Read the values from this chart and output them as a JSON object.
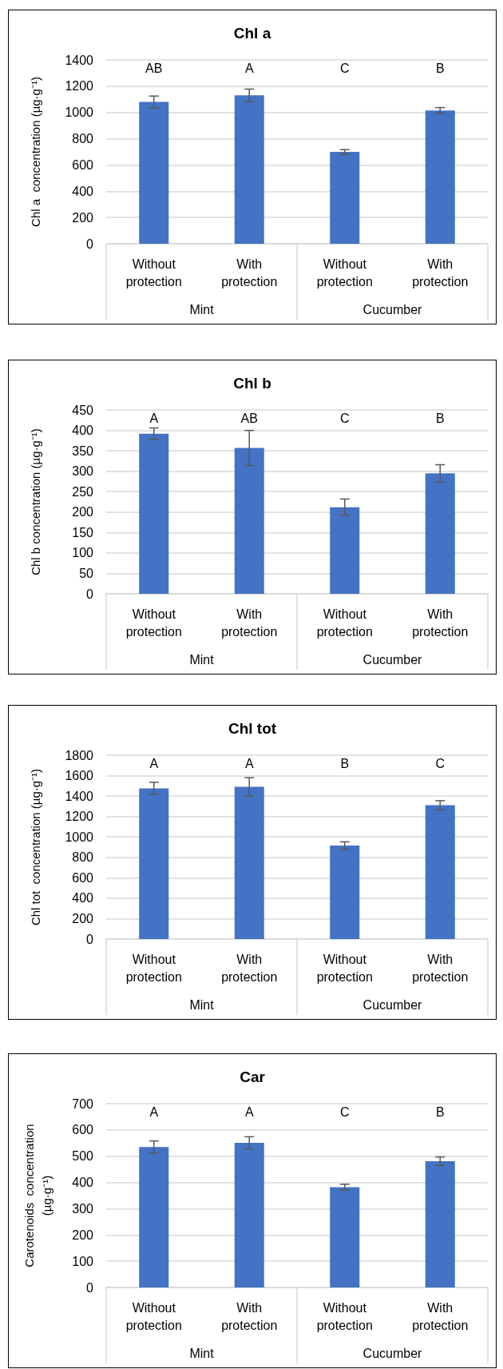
{
  "chart_data": [
    {
      "type": "bar",
      "title": "Chl a",
      "ylabel": "Chl a  concentration (µg·g⁻¹)",
      "categories": [
        "Without protection",
        "With protection",
        "Without protection",
        "With protection"
      ],
      "values": [
        1080,
        1130,
        700,
        1015
      ],
      "errors": [
        45,
        48,
        17,
        22
      ],
      "color": "#4472c4",
      "ylim": [
        0,
        1400
      ],
      "yticks": [
        0,
        200,
        400,
        600,
        800,
        1000,
        1200,
        1400
      ],
      "grid": "y",
      "annotations": [
        "AB",
        "A",
        "C",
        "B",
        "Mint",
        "Cucumber"
      ]
    },
    {
      "type": "bar",
      "title": "Chl b",
      "ylabel": "Chl b concentration (µg·g⁻¹)",
      "categories": [
        "Without protection",
        "With protection",
        "Without protection",
        "With protection"
      ],
      "values": [
        392,
        357,
        212,
        295
      ],
      "errors": [
        14,
        43,
        20,
        21
      ],
      "color": "#4472c4",
      "ylim": [
        0,
        450
      ],
      "yticks": [
        0,
        50,
        100,
        150,
        200,
        250,
        300,
        350,
        400,
        450
      ],
      "grid": "y",
      "annotations": [
        "A",
        "AB",
        "C",
        "B",
        "Mint",
        "Cucumber"
      ]
    },
    {
      "type": "bar",
      "title": "Chl tot",
      "ylabel": "Chl tot  concentration (µg·g⁻¹)",
      "categories": [
        "Without protection",
        "With protection",
        "Without protection",
        "With protection"
      ],
      "values": [
        1475,
        1490,
        915,
        1310
      ],
      "errors": [
        60,
        90,
        37,
        45
      ],
      "color": "#4472c4",
      "ylim": [
        0,
        1800
      ],
      "yticks": [
        0,
        200,
        400,
        600,
        800,
        1000,
        1200,
        1400,
        1600,
        1800
      ],
      "grid": "y",
      "annotations": [
        "A",
        "A",
        "B",
        "C",
        "Mint",
        "Cucumber"
      ]
    },
    {
      "type": "bar",
      "title": "Car",
      "ylabel": "Carotenoids  concentration\n(µg·g⁻¹)",
      "categories": [
        "Without protection",
        "With protection",
        "Without protection",
        "With protection"
      ],
      "values": [
        535,
        551,
        382,
        481
      ],
      "errors": [
        23,
        23,
        11,
        16
      ],
      "color": "#4472c4",
      "ylim": [
        0,
        700
      ],
      "yticks": [
        0,
        100,
        200,
        300,
        400,
        500,
        600,
        700
      ],
      "grid": "y",
      "annotations": [
        "A",
        "A",
        "C",
        "B",
        "Mint",
        "Cucumber"
      ]
    }
  ]
}
